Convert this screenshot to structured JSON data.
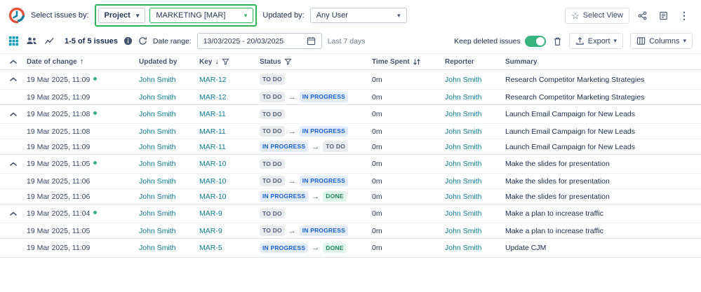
{
  "topbar": {
    "select_issues_label": "Select issues by:",
    "project_dropdown": "Project",
    "project_value": "MARKETING [MAR]",
    "updated_by_label": "Updated by:",
    "updated_by_value": "Any User",
    "select_view_label": "Select View"
  },
  "toolbar": {
    "issues_count": "1-5 of 5 issues",
    "date_range_label": "Date range:",
    "date_range_value": "13/03/2025 - 20/03/2025",
    "quick_range": "Last 7 days",
    "keep_deleted_label": "Keep deleted issues",
    "export_label": "Export",
    "columns_label": "Columns"
  },
  "table": {
    "headers": {
      "date": "Date of change",
      "updated_by": "Updated by",
      "key": "Key",
      "status": "Status",
      "time_spent": "Time Spent",
      "reporter": "Reporter",
      "summary": "Summary"
    },
    "groups": [
      {
        "rows": [
          {
            "chevron": true,
            "dot": true,
            "date": "19 Mar 2025, 11:09",
            "updated_by": "John Smith",
            "key": "MAR-12",
            "statuses": [
              "TO DO"
            ],
            "time": "0m",
            "reporter": "John Smith",
            "summary": "Research Competitor Marketing Strategies"
          },
          {
            "chevron": false,
            "dot": false,
            "date": "19 Mar 2025, 11:09",
            "updated_by": "John Smith",
            "key": "MAR-12",
            "statuses": [
              "TO DO",
              "IN PROGRESS"
            ],
            "time": "0m",
            "reporter": "John Smith",
            "summary": "Research Competitor Marketing Strategies"
          }
        ]
      },
      {
        "rows": [
          {
            "chevron": true,
            "dot": true,
            "date": "19 Mar 2025, 11:08",
            "updated_by": "John Smith",
            "key": "MAR-11",
            "statuses": [
              "TO DO"
            ],
            "time": "0m",
            "reporter": "John Smith",
            "summary": "Launch Email Campaign for New Leads"
          },
          {
            "chevron": false,
            "dot": false,
            "date": "19 Mar 2025, 11:08",
            "updated_by": "John Smith",
            "key": "MAR-11",
            "statuses": [
              "TO DO",
              "IN PROGRESS"
            ],
            "time": "0m",
            "reporter": "John Smith",
            "summary": "Launch Email Campaign for New Leads"
          },
          {
            "chevron": false,
            "dot": false,
            "date": "19 Mar 2025, 11:09",
            "updated_by": "John Smith",
            "key": "MAR-11",
            "statuses": [
              "IN PROGRESS",
              "TO DO"
            ],
            "time": "0m",
            "reporter": "John Smith",
            "summary": "Launch Email Campaign for New Leads"
          }
        ]
      },
      {
        "rows": [
          {
            "chevron": true,
            "dot": true,
            "date": "19 Mar 2025, 11:05",
            "updated_by": "John Smith",
            "key": "MAR-10",
            "statuses": [
              "TO DO"
            ],
            "time": "0m",
            "reporter": "John Smith",
            "summary": "Make the slides for presentation"
          },
          {
            "chevron": false,
            "dot": false,
            "date": "19 Mar 2025, 11:06",
            "updated_by": "John Smith",
            "key": "MAR-10",
            "statuses": [
              "TO DO",
              "IN PROGRESS"
            ],
            "time": "0m",
            "reporter": "John Smith",
            "summary": "Make the slides for presentation"
          },
          {
            "chevron": false,
            "dot": false,
            "date": "19 Mar 2025, 11:06",
            "updated_by": "John Smith",
            "key": "MAR-10",
            "statuses": [
              "IN PROGRESS",
              "DONE"
            ],
            "time": "0m",
            "reporter": "John Smith",
            "summary": "Make the slides for presentation"
          }
        ]
      },
      {
        "rows": [
          {
            "chevron": true,
            "dot": true,
            "date": "19 Mar 2025, 11:04",
            "updated_by": "John Smith",
            "key": "MAR-9",
            "statuses": [
              "TO DO"
            ],
            "time": "0m",
            "reporter": "John Smith",
            "summary": "Make a plan to increase traffic"
          },
          {
            "chevron": false,
            "dot": false,
            "date": "19 Mar 2025, 11:05",
            "updated_by": "John Smith",
            "key": "MAR-9",
            "statuses": [
              "TO DO",
              "IN PROGRESS"
            ],
            "time": "0m",
            "reporter": "John Smith",
            "summary": "Make a plan to increase traffic"
          }
        ]
      },
      {
        "rows": [
          {
            "chevron": false,
            "dot": false,
            "date": "19 Mar 2025, 11:09",
            "updated_by": "John Smith",
            "key": "MAR-5",
            "statuses": [
              "IN PROGRESS",
              "DONE"
            ],
            "time": "0m",
            "reporter": "John Smith",
            "summary": "Update CJM"
          }
        ]
      }
    ]
  },
  "colors": {
    "link_teal": "#0F7A93",
    "highlight_green": "#2CB55B",
    "toggle_green": "#36B37E",
    "active_view_teal": "#0E9DB5"
  }
}
